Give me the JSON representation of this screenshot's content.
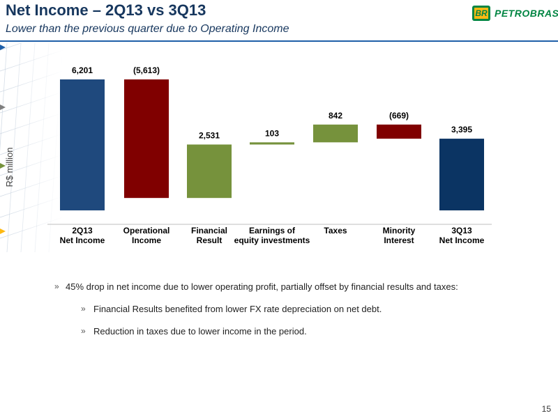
{
  "header": {
    "title": "Net Income – 2Q13 vs 3Q13",
    "subtitle": "Lower than the previous quarter due to Operating Income",
    "logo_text": "PETROBRAS",
    "logo_badge": "BR"
  },
  "chart_data": {
    "type": "waterfall",
    "ylabel": "R$ million",
    "categories": [
      [
        "2Q13",
        "Net Income"
      ],
      [
        "Operational",
        "Income"
      ],
      [
        "Financial",
        "Result"
      ],
      [
        "Earnings of",
        "equity investments"
      ],
      [
        "Taxes",
        ""
      ],
      [
        "Minority",
        "Interest"
      ],
      [
        "3Q13",
        "Net Income"
      ]
    ],
    "values": [
      6201,
      -5613,
      2531,
      103,
      842,
      -669,
      3395
    ],
    "value_labels": [
      "6,201",
      "(5,613)",
      "2,531",
      "103",
      "842",
      "(669)",
      "3,395"
    ],
    "kind": [
      "total",
      "delta",
      "delta",
      "delta",
      "delta",
      "delta",
      "total"
    ],
    "colors": {
      "start_total": "#1f497d",
      "end_total": "#0b3463",
      "increase": "#76923c",
      "decrease": "#800000"
    }
  },
  "bullets": [
    {
      "level": 1,
      "text": "45% drop in net income due to lower operating profit, partially offset by financial results and taxes:"
    },
    {
      "level": 2,
      "text": "Financial Results benefited from lower  FX rate depreciation on net debt."
    },
    {
      "level": 2,
      "text": "Reduction in taxes due to lower income in the period."
    }
  ],
  "bullet_marker": "»",
  "page_number": "15"
}
